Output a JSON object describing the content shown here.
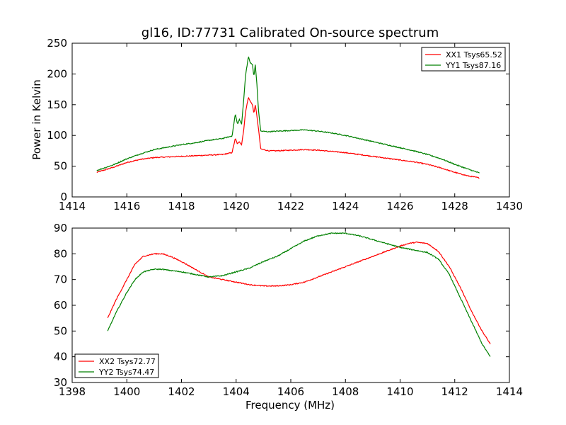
{
  "chart_data": [
    {
      "type": "line",
      "title": "gl16, ID:77731 Calibrated On-source spectrum",
      "xlabel": "",
      "ylabel": "Power in Kelvin",
      "xlim": [
        1414,
        1430
      ],
      "ylim": [
        0,
        250
      ],
      "xticks": [
        1414,
        1416,
        1418,
        1420,
        1422,
        1424,
        1426,
        1428,
        1430
      ],
      "yticks": [
        0,
        50,
        100,
        150,
        200,
        250
      ],
      "legend": "top-right",
      "series": [
        {
          "name": "XX1 Tsys65.52",
          "color": "#ff0000",
          "x": [
            1414.9,
            1415.5,
            1416.0,
            1416.5,
            1417.0,
            1417.5,
            1418.0,
            1418.5,
            1419.0,
            1419.5,
            1419.85,
            1419.97,
            1420.05,
            1420.12,
            1420.2,
            1420.28,
            1420.35,
            1420.45,
            1420.52,
            1420.6,
            1420.65,
            1420.7,
            1420.75,
            1420.82,
            1420.9,
            1421.2,
            1421.5,
            1422.0,
            1422.5,
            1423.0,
            1423.5,
            1424.0,
            1424.5,
            1425.0,
            1425.5,
            1426.0,
            1426.5,
            1427.0,
            1427.5,
            1428.0,
            1428.5,
            1428.9
          ],
          "y": [
            40,
            48,
            56,
            61,
            64,
            65,
            66,
            67,
            68,
            69,
            72,
            95,
            86,
            90,
            85,
            110,
            140,
            162,
            155,
            150,
            135,
            150,
            135,
            110,
            78,
            75,
            75,
            76,
            77,
            76,
            74,
            72,
            69,
            66,
            63,
            60,
            57,
            53,
            47,
            40,
            34,
            31
          ]
        },
        {
          "name": "YY1 Tsys87.16",
          "color": "#008000",
          "x": [
            1414.9,
            1415.5,
            1416.0,
            1416.5,
            1417.0,
            1417.5,
            1418.0,
            1418.5,
            1419.0,
            1419.5,
            1419.85,
            1419.97,
            1420.05,
            1420.12,
            1420.2,
            1420.28,
            1420.35,
            1420.45,
            1420.52,
            1420.6,
            1420.65,
            1420.7,
            1420.75,
            1420.82,
            1420.9,
            1421.2,
            1421.5,
            1422.0,
            1422.5,
            1423.0,
            1423.5,
            1424.0,
            1424.5,
            1425.0,
            1425.5,
            1426.0,
            1426.5,
            1427.0,
            1427.5,
            1428.0,
            1428.5,
            1428.9
          ],
          "y": [
            43,
            52,
            62,
            70,
            77,
            81,
            85,
            88,
            92,
            95,
            99,
            135,
            118,
            126,
            118,
            160,
            200,
            228,
            218,
            215,
            195,
            215,
            190,
            140,
            107,
            106,
            107,
            108,
            109,
            107,
            104,
            100,
            95,
            90,
            85,
            80,
            75,
            69,
            62,
            53,
            45,
            39
          ]
        }
      ]
    },
    {
      "type": "line",
      "title": "",
      "xlabel": "Frequency (MHz)",
      "ylabel": "",
      "xlim": [
        1398,
        1414
      ],
      "ylim": [
        30,
        90
      ],
      "xticks": [
        1398,
        1400,
        1402,
        1404,
        1406,
        1408,
        1410,
        1412,
        1414
      ],
      "yticks": [
        30,
        40,
        50,
        60,
        70,
        80,
        90
      ],
      "legend": "bottom-left",
      "series": [
        {
          "name": "XX2 Tsys72.77",
          "color": "#ff0000",
          "x": [
            1399.3,
            1399.6,
            1400.0,
            1400.3,
            1400.6,
            1401.0,
            1401.3,
            1401.6,
            1402.0,
            1402.5,
            1403.0,
            1403.5,
            1404.0,
            1404.5,
            1405.0,
            1405.5,
            1406.0,
            1406.5,
            1407.0,
            1407.5,
            1408.0,
            1408.5,
            1409.0,
            1409.5,
            1410.0,
            1410.3,
            1410.6,
            1411.0,
            1411.4,
            1411.8,
            1412.2,
            1412.6,
            1413.0,
            1413.3
          ],
          "y": [
            55,
            62,
            70,
            76,
            79,
            80,
            80,
            79,
            77,
            74,
            71,
            70,
            69,
            68,
            67.5,
            67.5,
            68,
            69,
            71,
            73,
            75,
            77,
            79,
            81,
            83,
            84,
            84.5,
            84,
            81,
            75,
            67,
            58,
            50,
            45
          ]
        },
        {
          "name": "YY2 Tsys74.47",
          "color": "#008000",
          "x": [
            1399.3,
            1399.6,
            1400.0,
            1400.3,
            1400.6,
            1401.0,
            1401.3,
            1401.6,
            1402.0,
            1402.5,
            1403.0,
            1403.5,
            1404.0,
            1404.5,
            1405.0,
            1405.5,
            1406.0,
            1406.5,
            1407.0,
            1407.5,
            1408.0,
            1408.5,
            1409.0,
            1409.5,
            1410.0,
            1410.5,
            1411.0,
            1411.4,
            1411.8,
            1412.2,
            1412.6,
            1413.0,
            1413.3
          ],
          "y": [
            50,
            57,
            65,
            70,
            73,
            74,
            74,
            73.5,
            73,
            72,
            71,
            71.5,
            73,
            74.5,
            77,
            79,
            82,
            85,
            87,
            88,
            88,
            87,
            85.5,
            84,
            82.5,
            81.5,
            80.5,
            78,
            72,
            63,
            54,
            45,
            40
          ]
        }
      ]
    }
  ]
}
